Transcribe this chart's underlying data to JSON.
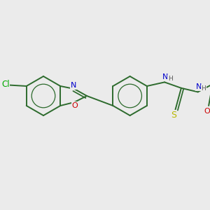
{
  "bg_color": "#ebebeb",
  "bond_color": "#2d6b2d",
  "bond_width": 1.4,
  "atom_colors": {
    "N": "#0000cc",
    "O": "#cc0000",
    "S": "#b8b800",
    "Cl": "#00aa00",
    "C": "#2d6b2d",
    "H": "#555555"
  },
  "font_size": 7.5,
  "fig_width": 3.0,
  "fig_height": 3.0,
  "dpi": 100
}
